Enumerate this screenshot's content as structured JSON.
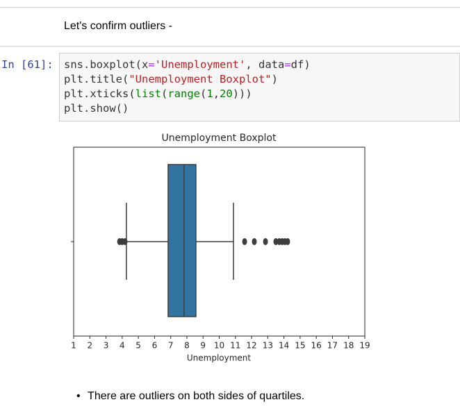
{
  "markdown": {
    "text": "Let's confirm outliers -"
  },
  "code_cell": {
    "prompt": "In [61]:",
    "lines": [
      [
        "sns.boxplot(x",
        "=",
        "'Unemployment'",
        ", data",
        "=",
        "df)"
      ],
      [
        "plt.title(",
        "\"Unemployment Boxplot\"",
        ")"
      ],
      [
        "plt.xticks(",
        "list",
        "(",
        "range",
        "(",
        "1",
        ",",
        "20",
        ")))"
      ],
      [
        "plt.show()"
      ]
    ]
  },
  "chart_data": {
    "type": "box",
    "title": "Unemployment Boxplot",
    "xlabel": "Unemployment",
    "xlim": [
      1,
      19
    ],
    "xticks": [
      1,
      2,
      3,
      4,
      5,
      6,
      7,
      8,
      9,
      10,
      11,
      12,
      13,
      14,
      15,
      16,
      17,
      18,
      19
    ],
    "box": {
      "whislo": 4.26,
      "q1": 6.84,
      "median": 7.83,
      "q3": 8.56,
      "whishi": 10.88
    },
    "fliers": [
      3.84,
      4.0,
      4.18,
      11.57,
      12.17,
      12.86,
      13.5,
      13.71,
      13.89,
      14.06,
      14.23
    ],
    "color": "#3274a1"
  },
  "bullet": {
    "text": "There are outliers on both sides of quartiles."
  }
}
